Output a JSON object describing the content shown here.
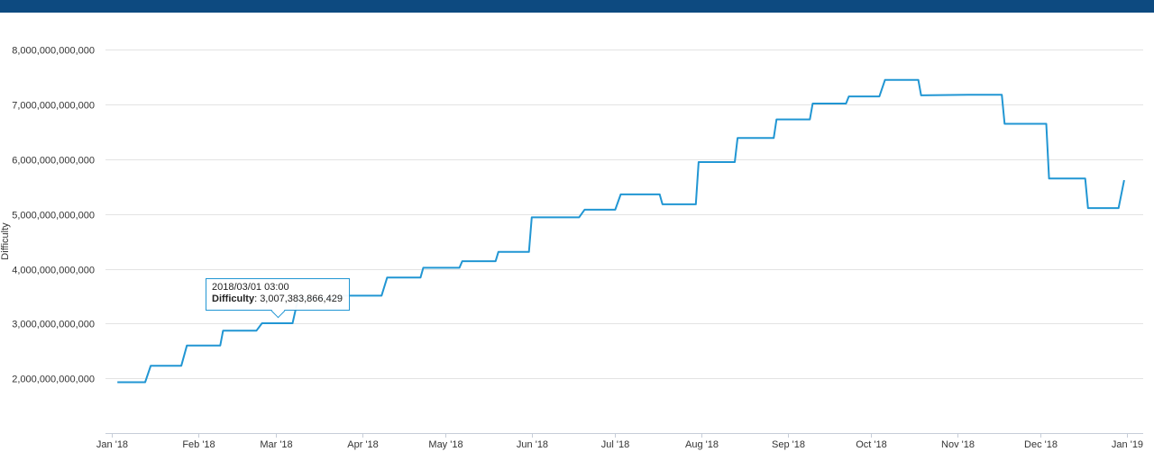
{
  "colors": {
    "header": "#0d4a80",
    "series": "#2196d3",
    "grid": "#e3e3e3",
    "axis": "#c6cdd8"
  },
  "tooltip": {
    "date": "2018/03/01 03:00",
    "label": "Difficulty",
    "value": "3,007,383,866,429"
  },
  "chart_data": {
    "type": "line",
    "title": "",
    "xlabel": "",
    "ylabel": "Difficulty",
    "ylim": [
      1000000000000,
      8000000000000
    ],
    "y_ticks": [
      2000000000000,
      3000000000000,
      4000000000000,
      5000000000000,
      6000000000000,
      7000000000000,
      8000000000000
    ],
    "y_tick_labels": [
      "2,000,000,000,000",
      "3,000,000,000,000",
      "4,000,000,000,000",
      "5,000,000,000,000",
      "6,000,000,000,000",
      "7,000,000,000,000",
      "8,000,000,000,000"
    ],
    "x_ticks": [
      "2018-01-01",
      "2018-02-01",
      "2018-03-01",
      "2018-04-01",
      "2018-05-01",
      "2018-06-01",
      "2018-07-01",
      "2018-08-01",
      "2018-09-01",
      "2018-10-01",
      "2018-11-01",
      "2018-12-01",
      "2019-01-01"
    ],
    "x_tick_labels": [
      "Jan '18",
      "Feb '18",
      "Mar '18",
      "Apr '18",
      "May '18",
      "Jun '18",
      "Jul '18",
      "Aug '18",
      "Sep '18",
      "Oct '18",
      "Nov '18",
      "Dec '18",
      "Jan '19"
    ],
    "grid": true,
    "legend": "none",
    "series": [
      {
        "x": [
          "2018-01-03",
          "2018-01-13",
          "2018-01-15",
          "2018-01-26",
          "2018-01-28",
          "2018-02-09",
          "2018-02-10",
          "2018-02-22",
          "2018-02-24",
          "2018-03-07",
          "2018-03-09",
          "2018-03-23",
          "2018-03-25",
          "2018-04-08",
          "2018-04-10",
          "2018-04-22",
          "2018-04-23",
          "2018-05-06",
          "2018-05-07",
          "2018-05-19",
          "2018-05-20",
          "2018-05-31",
          "2018-06-01",
          "2018-06-18",
          "2018-06-20",
          "2018-07-01",
          "2018-07-03",
          "2018-07-17",
          "2018-07-18",
          "2018-07-30",
          "2018-07-31",
          "2018-08-13",
          "2018-08-14",
          "2018-08-27",
          "2018-08-28",
          "2018-09-09",
          "2018-09-10",
          "2018-09-22",
          "2018-09-23",
          "2018-10-04",
          "2018-10-06",
          "2018-10-18",
          "2018-10-19",
          "2018-11-05",
          "2018-11-17",
          "2018-11-18",
          "2018-12-03",
          "2018-12-04",
          "2018-12-17",
          "2018-12-18",
          "2018-12-29",
          "2018-12-31"
        ],
        "y": [
          1930000000000,
          1930000000000,
          2230000000000,
          2230000000000,
          2600000000000,
          2600000000000,
          2870000000000,
          2870000000000,
          3007383866429,
          3007383866429,
          3460000000000,
          3460000000000,
          3510000000000,
          3510000000000,
          3840000000000,
          3840000000000,
          4020000000000,
          4020000000000,
          4140000000000,
          4140000000000,
          4310000000000,
          4310000000000,
          4940000000000,
          4940000000000,
          5080000000000,
          5080000000000,
          5360000000000,
          5360000000000,
          5180000000000,
          5180000000000,
          5950000000000,
          5950000000000,
          6390000000000,
          6390000000000,
          6730000000000,
          6730000000000,
          7020000000000,
          7020000000000,
          7150000000000,
          7150000000000,
          7450000000000,
          7450000000000,
          7170000000000,
          7180000000000,
          7180000000000,
          6650000000000,
          6650000000000,
          5650000000000,
          5650000000000,
          5110000000000,
          5110000000000,
          5620000000000
        ]
      }
    ]
  }
}
